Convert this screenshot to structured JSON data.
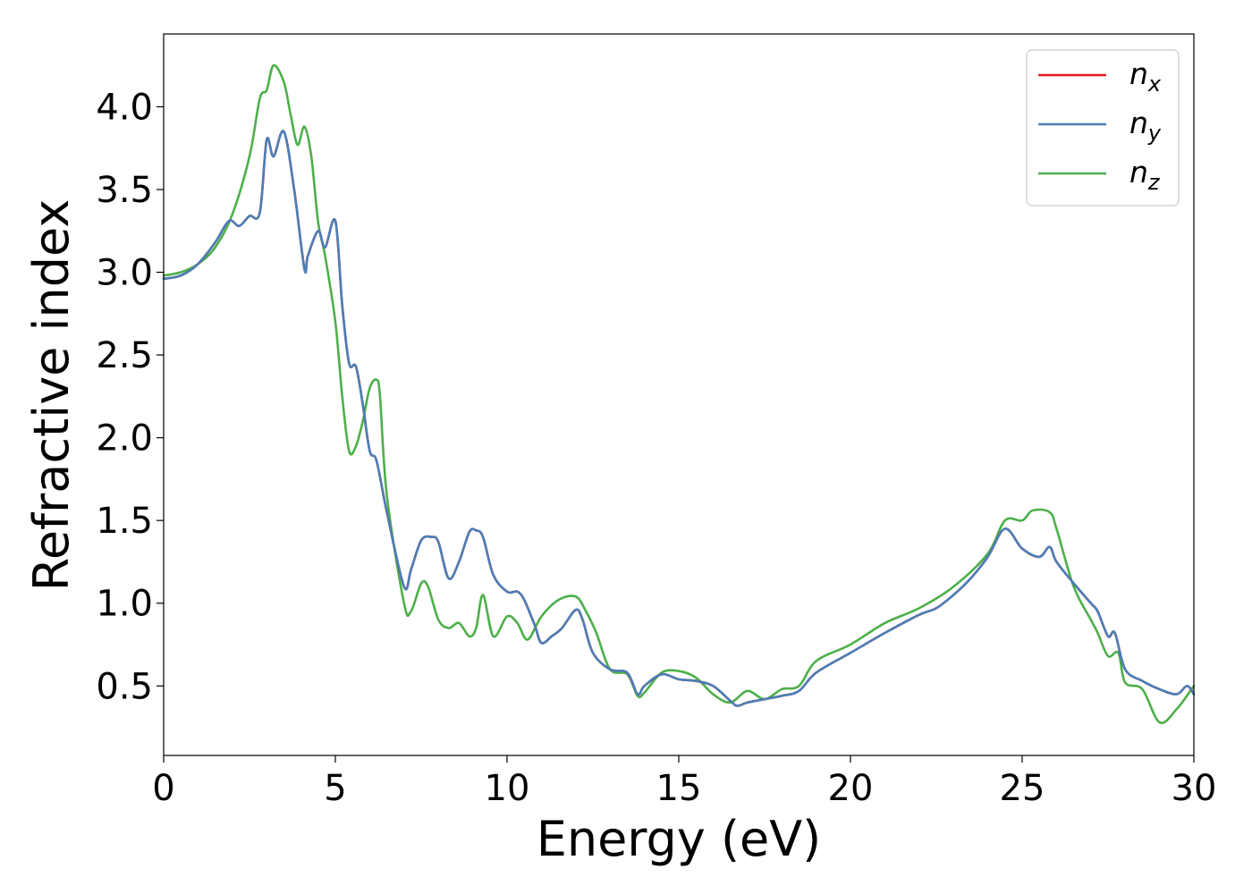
{
  "chart_data": {
    "type": "line",
    "title": "",
    "xlabel": "Energy (eV)",
    "ylabel": "Refractive index",
    "xlim": [
      0,
      30
    ],
    "ylim": [
      0.08,
      4.44
    ],
    "xticks": [
      0,
      5,
      10,
      15,
      20,
      25,
      30
    ],
    "xtick_labels": [
      "0",
      "5",
      "10",
      "15",
      "20",
      "25",
      "30"
    ],
    "yticks": [
      0.5,
      1.0,
      1.5,
      2.0,
      2.5,
      3.0,
      3.5,
      4.0
    ],
    "ytick_labels": [
      "0.5",
      "1.0",
      "1.5",
      "2.0",
      "2.5",
      "3.0",
      "3.5",
      "4.0"
    ],
    "grid": false,
    "legend_position": "top-right",
    "series": [
      {
        "name": "n_x",
        "legend_base": "n",
        "legend_sub": "x",
        "color": "#e41a1c",
        "x": [
          0,
          0.5,
          1,
          1.5,
          1.9,
          2.2,
          2.5,
          2.8,
          3.0,
          3.2,
          3.5,
          3.8,
          4.1,
          4.2,
          4.5,
          4.7,
          5.0,
          5.2,
          5.4,
          5.6,
          5.8,
          6.0,
          6.2,
          6.5,
          7.0,
          7.2,
          7.5,
          7.8,
          8.0,
          8.3,
          8.6,
          8.9,
          9.1,
          9.3,
          9.6,
          10.0,
          10.3,
          10.5,
          10.8,
          11.0,
          11.3,
          11.6,
          12.0,
          12.2,
          12.5,
          13.0,
          13.5,
          13.8,
          14.0,
          14.5,
          15.0,
          15.5,
          16.0,
          16.5,
          16.7,
          17.0,
          17.5,
          18.0,
          18.5,
          19.0,
          20.0,
          21.0,
          22.0,
          22.5,
          23.0,
          23.5,
          24.0,
          24.5,
          25.0,
          25.5,
          25.8,
          26.0,
          26.5,
          27.0,
          27.2,
          27.5,
          27.7,
          28.0,
          28.5,
          29.0,
          29.5,
          29.8,
          30.0
        ],
        "y": [
          2.96,
          2.98,
          3.05,
          3.18,
          3.31,
          3.28,
          3.34,
          3.36,
          3.8,
          3.7,
          3.85,
          3.5,
          3.02,
          3.1,
          3.25,
          3.15,
          3.31,
          2.8,
          2.45,
          2.43,
          2.2,
          1.92,
          1.86,
          1.55,
          1.1,
          1.2,
          1.38,
          1.4,
          1.37,
          1.15,
          1.25,
          1.43,
          1.44,
          1.4,
          1.17,
          1.07,
          1.07,
          1.02,
          0.87,
          0.76,
          0.8,
          0.85,
          0.96,
          0.9,
          0.7,
          0.6,
          0.58,
          0.45,
          0.5,
          0.57,
          0.54,
          0.53,
          0.5,
          0.41,
          0.38,
          0.4,
          0.42,
          0.44,
          0.47,
          0.58,
          0.7,
          0.82,
          0.93,
          0.97,
          1.05,
          1.15,
          1.28,
          1.45,
          1.33,
          1.28,
          1.34,
          1.25,
          1.12,
          1.0,
          0.95,
          0.8,
          0.82,
          0.6,
          0.53,
          0.48,
          0.45,
          0.5,
          0.45
        ]
      },
      {
        "name": "n_y",
        "legend_base": "n",
        "legend_sub": "y",
        "color": "#4a7fb6",
        "x": [
          0,
          0.5,
          1,
          1.5,
          1.9,
          2.2,
          2.5,
          2.8,
          3.0,
          3.2,
          3.5,
          3.8,
          4.1,
          4.2,
          4.5,
          4.7,
          5.0,
          5.2,
          5.4,
          5.6,
          5.8,
          6.0,
          6.2,
          6.5,
          7.0,
          7.2,
          7.5,
          7.8,
          8.0,
          8.3,
          8.6,
          8.9,
          9.1,
          9.3,
          9.6,
          10.0,
          10.3,
          10.5,
          10.8,
          11.0,
          11.3,
          11.6,
          12.0,
          12.2,
          12.5,
          13.0,
          13.5,
          13.8,
          14.0,
          14.5,
          15.0,
          15.5,
          16.0,
          16.5,
          16.7,
          17.0,
          17.5,
          18.0,
          18.5,
          19.0,
          20.0,
          21.0,
          22.0,
          22.5,
          23.0,
          23.5,
          24.0,
          24.5,
          25.0,
          25.5,
          25.8,
          26.0,
          26.5,
          27.0,
          27.2,
          27.5,
          27.7,
          28.0,
          28.5,
          29.0,
          29.5,
          29.8,
          30.0
        ],
        "y": [
          2.96,
          2.98,
          3.05,
          3.18,
          3.31,
          3.28,
          3.34,
          3.36,
          3.8,
          3.7,
          3.85,
          3.5,
          3.02,
          3.1,
          3.25,
          3.15,
          3.31,
          2.8,
          2.45,
          2.43,
          2.2,
          1.92,
          1.86,
          1.55,
          1.1,
          1.2,
          1.38,
          1.4,
          1.37,
          1.15,
          1.25,
          1.43,
          1.44,
          1.4,
          1.17,
          1.07,
          1.07,
          1.02,
          0.87,
          0.76,
          0.8,
          0.85,
          0.96,
          0.9,
          0.7,
          0.6,
          0.58,
          0.45,
          0.5,
          0.57,
          0.54,
          0.53,
          0.5,
          0.41,
          0.38,
          0.4,
          0.42,
          0.44,
          0.47,
          0.58,
          0.7,
          0.82,
          0.93,
          0.97,
          1.05,
          1.15,
          1.28,
          1.45,
          1.33,
          1.28,
          1.34,
          1.25,
          1.12,
          1.0,
          0.95,
          0.8,
          0.82,
          0.6,
          0.53,
          0.48,
          0.45,
          0.5,
          0.45
        ]
      },
      {
        "name": "n_z",
        "legend_base": "n",
        "legend_sub": "z",
        "color": "#4daf4a",
        "x": [
          0,
          0.5,
          1,
          1.5,
          2.0,
          2.5,
          2.8,
          3.0,
          3.2,
          3.5,
          3.7,
          3.9,
          4.1,
          4.3,
          4.5,
          4.7,
          5.0,
          5.2,
          5.4,
          5.6,
          5.8,
          6.0,
          6.2,
          6.3,
          6.5,
          7.0,
          7.2,
          7.5,
          7.7,
          8.0,
          8.3,
          8.6,
          8.9,
          9.1,
          9.3,
          9.6,
          10.0,
          10.3,
          10.6,
          11.0,
          11.5,
          12.0,
          12.3,
          12.6,
          13.0,
          13.5,
          13.8,
          14.0,
          14.5,
          15.0,
          15.5,
          16.0,
          16.5,
          17.0,
          17.5,
          18.0,
          18.5,
          19.0,
          20.0,
          21.0,
          22.0,
          23.0,
          24.0,
          24.5,
          25.0,
          25.3,
          25.8,
          26.0,
          26.5,
          27.0,
          27.2,
          27.5,
          27.8,
          28.0,
          28.5,
          29.0,
          29.5,
          30.0
        ],
        "y": [
          2.98,
          3.0,
          3.05,
          3.15,
          3.35,
          3.7,
          4.05,
          4.1,
          4.25,
          4.15,
          3.95,
          3.77,
          3.88,
          3.7,
          3.3,
          3.1,
          2.7,
          2.25,
          1.92,
          1.95,
          2.1,
          2.3,
          2.35,
          2.25,
          1.65,
          1.0,
          0.95,
          1.12,
          1.1,
          0.9,
          0.85,
          0.88,
          0.8,
          0.85,
          1.05,
          0.8,
          0.92,
          0.88,
          0.78,
          0.92,
          1.02,
          1.04,
          0.95,
          0.82,
          0.6,
          0.57,
          0.44,
          0.46,
          0.58,
          0.59,
          0.55,
          0.45,
          0.4,
          0.47,
          0.42,
          0.48,
          0.5,
          0.65,
          0.75,
          0.88,
          0.97,
          1.1,
          1.3,
          1.5,
          1.5,
          1.56,
          1.55,
          1.45,
          1.1,
          0.9,
          0.82,
          0.68,
          0.7,
          0.52,
          0.48,
          0.28,
          0.36,
          0.5
        ]
      }
    ]
  }
}
